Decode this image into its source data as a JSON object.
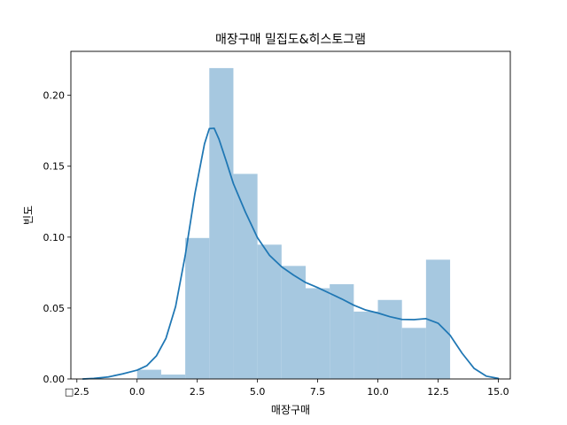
{
  "chart_data": {
    "type": "bar",
    "title": "매장구매 밀집도&히스토그램",
    "xlabel": "매장구매",
    "ylabel": "빈도",
    "xlim": [
      -2.75,
      15.5
    ],
    "ylim": [
      0.0,
      0.231
    ],
    "x_ticks": [
      -2.5,
      0.0,
      2.5,
      5.0,
      7.5,
      10.0,
      12.5,
      15.0
    ],
    "x_tick_labels": [
      "□2.5",
      "0.0",
      "2.5",
      "5.0",
      "7.5",
      "10.0",
      "12.5",
      "15.0"
    ],
    "y_ticks": [
      0.0,
      0.05,
      0.1,
      0.15,
      0.2
    ],
    "y_tick_labels": [
      "0.00",
      "0.05",
      "0.10",
      "0.15",
      "0.20"
    ],
    "grid": false,
    "series": [
      {
        "kind": "histogram",
        "color": "#a6c8e0",
        "bins": [
          {
            "x0": 0.0,
            "x1": 1.0,
            "y": 0.0065
          },
          {
            "x0": 1.0,
            "x1": 2.0,
            "y": 0.0031
          },
          {
            "x0": 2.0,
            "x1": 3.0,
            "y": 0.0994
          },
          {
            "x0": 3.0,
            "x1": 4.0,
            "y": 0.2192
          },
          {
            "x0": 4.0,
            "x1": 5.0,
            "y": 0.1446
          },
          {
            "x0": 5.0,
            "x1": 6.0,
            "y": 0.0947
          },
          {
            "x0": 6.0,
            "x1": 7.0,
            "y": 0.0797
          },
          {
            "x0": 7.0,
            "x1": 8.0,
            "y": 0.064
          },
          {
            "x0": 8.0,
            "x1": 9.0,
            "y": 0.0668
          },
          {
            "x0": 9.0,
            "x1": 10.0,
            "y": 0.0475
          },
          {
            "x0": 10.0,
            "x1": 11.0,
            "y": 0.0557
          },
          {
            "x0": 11.0,
            "x1": 12.0,
            "y": 0.036
          },
          {
            "x0": 12.0,
            "x1": 13.0,
            "y": 0.0841
          }
        ]
      },
      {
        "kind": "kde",
        "color": "#1f77b4",
        "x": [
          -2.25,
          -1.8,
          -1.2,
          -0.6,
          0.0,
          0.4,
          0.8,
          1.2,
          1.6,
          2.0,
          2.4,
          2.8,
          3.0,
          3.2,
          3.4,
          3.7,
          4.0,
          4.5,
          5.0,
          5.5,
          6.0,
          6.5,
          7.0,
          7.5,
          8.0,
          8.5,
          9.0,
          9.5,
          10.0,
          10.5,
          11.0,
          11.5,
          12.0,
          12.5,
          13.0,
          13.5,
          14.0,
          14.5,
          15.0
        ],
        "y": [
          0.0,
          0.0004,
          0.0014,
          0.0036,
          0.0062,
          0.0093,
          0.0162,
          0.0287,
          0.0511,
          0.0872,
          0.1305,
          0.1658,
          0.1765,
          0.1768,
          0.1691,
          0.1537,
          0.1377,
          0.1176,
          0.0996,
          0.0872,
          0.0791,
          0.0732,
          0.068,
          0.0644,
          0.0604,
          0.0564,
          0.052,
          0.0486,
          0.0465,
          0.0439,
          0.042,
          0.0418,
          0.0425,
          0.0393,
          0.0308,
          0.0181,
          0.0074,
          0.002,
          0.0004
        ]
      }
    ]
  }
}
